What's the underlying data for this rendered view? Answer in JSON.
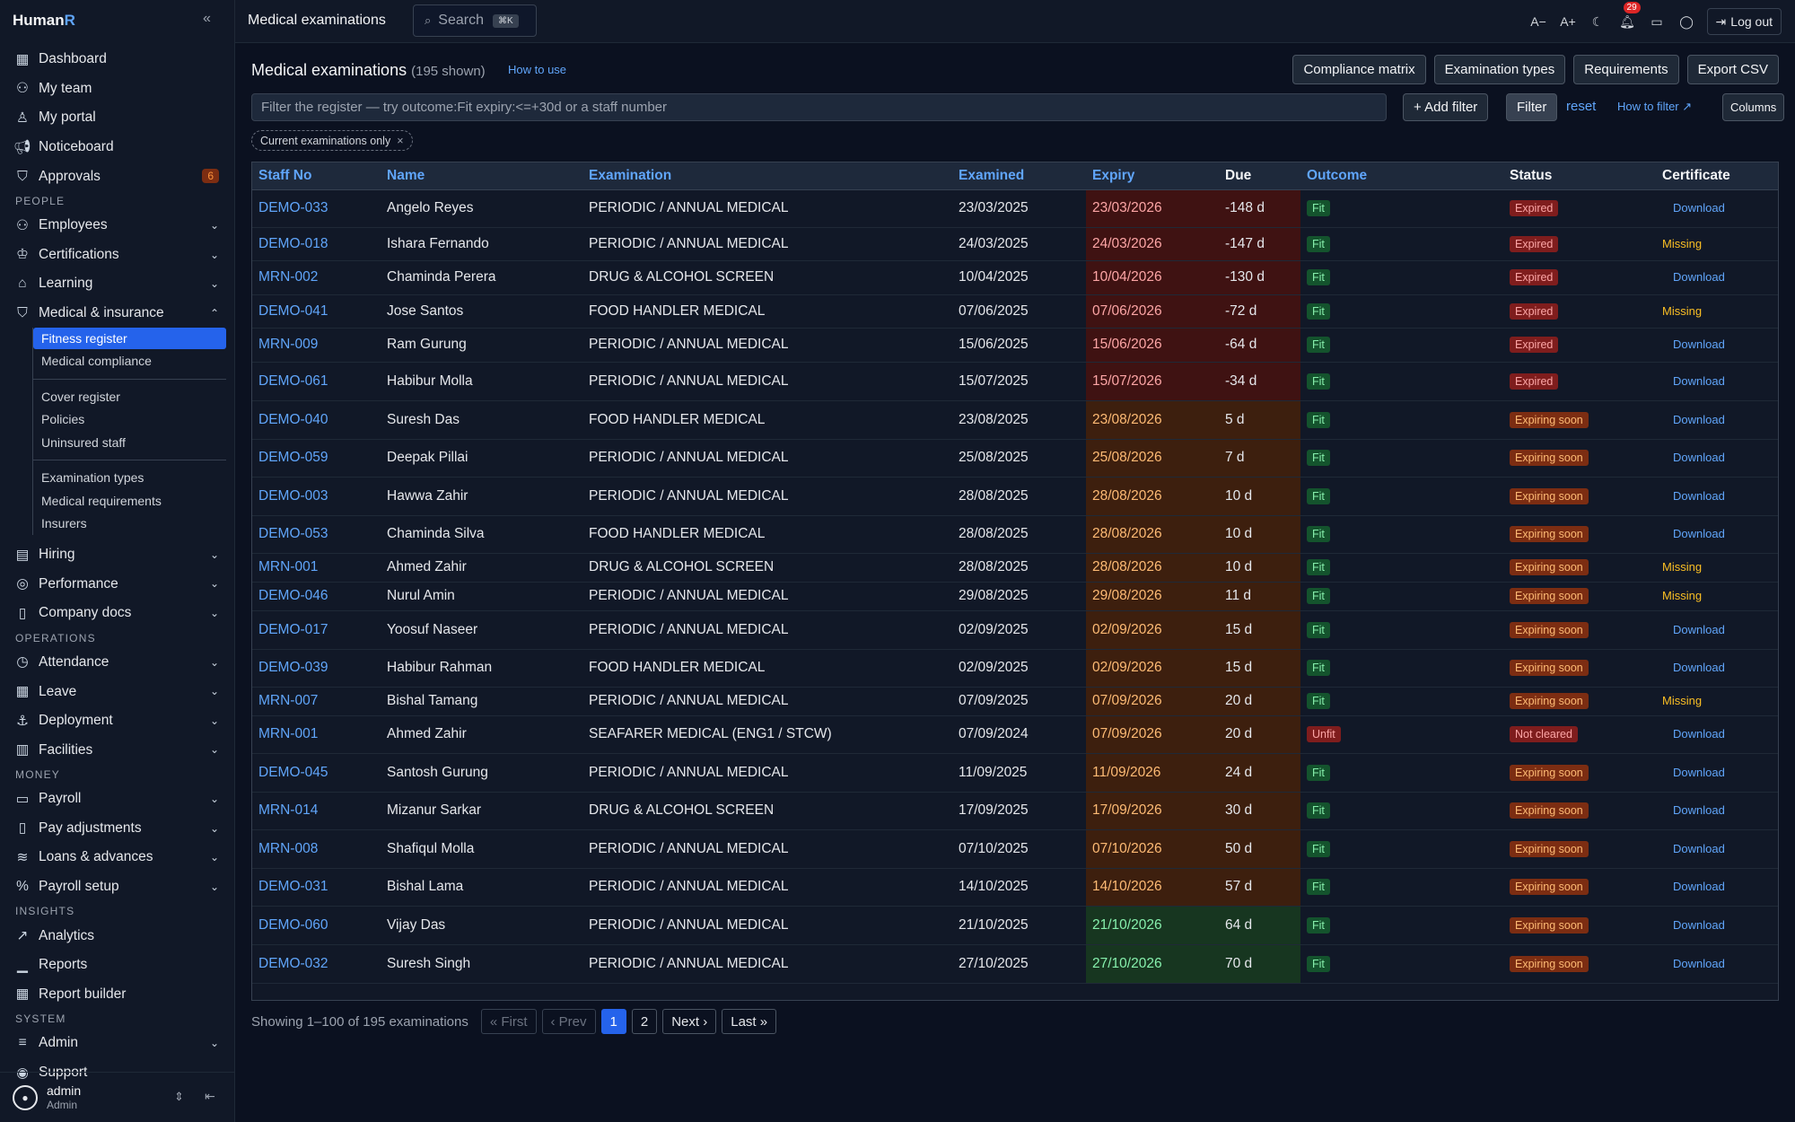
{
  "app": {
    "brand_main": "Human",
    "brand_accent": "R"
  },
  "sidebar": {
    "top": [
      {
        "label": "Dashboard",
        "icon": "grid-icon"
      },
      {
        "label": "My team",
        "icon": "team-icon"
      },
      {
        "label": "My portal",
        "icon": "user-icon"
      },
      {
        "label": "Noticeboard",
        "icon": "megaphone-icon"
      },
      {
        "label": "Approvals",
        "icon": "shield-check-icon",
        "badge": "6"
      }
    ],
    "people_heading": "PEOPLE",
    "people": [
      {
        "label": "Employees",
        "icon": "users-icon"
      },
      {
        "label": "Certifications",
        "icon": "award-icon"
      },
      {
        "label": "Learning",
        "icon": "graduation-cap-icon"
      },
      {
        "label": "Medical & insurance",
        "icon": "shield-plus-icon"
      }
    ],
    "medical_sub": [
      "Fitness register",
      "Medical compliance",
      "Cover register",
      "Policies",
      "Uninsured staff",
      "Examination types",
      "Medical requirements",
      "Insurers"
    ],
    "people2": [
      {
        "label": "Hiring",
        "icon": "briefcase-icon"
      },
      {
        "label": "Performance",
        "icon": "target-icon"
      },
      {
        "label": "Company docs",
        "icon": "book-icon"
      }
    ],
    "ops_heading": "OPERATIONS",
    "ops": [
      {
        "label": "Attendance",
        "icon": "clock-icon"
      },
      {
        "label": "Leave",
        "icon": "calendar-icon"
      },
      {
        "label": "Deployment",
        "icon": "anchor-icon"
      },
      {
        "label": "Facilities",
        "icon": "building-icon"
      }
    ],
    "money_heading": "MONEY",
    "money": [
      {
        "label": "Payroll",
        "icon": "payroll-icon"
      },
      {
        "label": "Pay adjustments",
        "icon": "receipt-icon"
      },
      {
        "label": "Loans & advances",
        "icon": "coins-icon"
      },
      {
        "label": "Payroll setup",
        "icon": "percent-icon"
      }
    ],
    "insights_heading": "INSIGHTS",
    "insights": [
      {
        "label": "Analytics",
        "icon": "trend-icon"
      },
      {
        "label": "Reports",
        "icon": "bar-chart-icon"
      },
      {
        "label": "Report builder",
        "icon": "table-icon"
      }
    ],
    "system_heading": "SYSTEM",
    "system": [
      {
        "label": "Admin",
        "icon": "sliders-icon"
      },
      {
        "label": "Support",
        "icon": "lifebuoy-icon"
      }
    ],
    "user": {
      "name": "admin",
      "role": "Admin"
    }
  },
  "topbar": {
    "title": "Medical examinations",
    "search_label": "Search",
    "search_kbd": "⌘K",
    "font_minus": "A−",
    "font_plus": "A+",
    "notif_count": "29",
    "logout": "Log out"
  },
  "page": {
    "title": "Medical examinations",
    "count": "(195 shown)",
    "how_to_use": "How to use",
    "buttons": [
      "Compliance matrix",
      "Examination types",
      "Requirements",
      "Export CSV"
    ],
    "filter_placeholder": "Filter the register — try outcome:Fit expiry:<=+30d or a staff number",
    "add_filter": "+ Add filter",
    "filter": "Filter",
    "reset": "reset",
    "how_to_filter": "How to filter ↗",
    "columns": "Columns",
    "chip": "Current examinations only"
  },
  "table": {
    "headers": [
      "Staff No",
      "Name",
      "Examination",
      "Examined",
      "Expiry",
      "Due",
      "Outcome",
      "Status",
      "Certificate"
    ],
    "rows": [
      [
        "DEMO-033",
        "Angelo Reyes",
        "PERIODIC / ANNUAL MEDICAL",
        "23/03/2025",
        "23/03/2026",
        "-148 d",
        "Fit",
        "Expired",
        "Download"
      ],
      [
        "DEMO-018",
        "Ishara Fernando",
        "PERIODIC / ANNUAL MEDICAL",
        "24/03/2025",
        "24/03/2026",
        "-147 d",
        "Fit",
        "Expired",
        "Missing"
      ],
      [
        "MRN-002",
        "Chaminda Perera",
        "DRUG & ALCOHOL SCREEN",
        "10/04/2025",
        "10/04/2026",
        "-130 d",
        "Fit",
        "Expired",
        "Download"
      ],
      [
        "DEMO-041",
        "Jose Santos",
        "FOOD HANDLER MEDICAL",
        "07/06/2025",
        "07/06/2026",
        "-72 d",
        "Fit",
        "Expired",
        "Missing"
      ],
      [
        "MRN-009",
        "Ram Gurung",
        "PERIODIC / ANNUAL MEDICAL",
        "15/06/2025",
        "15/06/2026",
        "-64 d",
        "Fit",
        "Expired",
        "Download"
      ],
      [
        "DEMO-061",
        "Habibur Molla",
        "PERIODIC / ANNUAL MEDICAL",
        "15/07/2025",
        "15/07/2026",
        "-34 d",
        "Fit",
        "Expired",
        "Download"
      ],
      [
        "DEMO-040",
        "Suresh Das",
        "FOOD HANDLER MEDICAL",
        "23/08/2025",
        "23/08/2026",
        "5 d",
        "Fit",
        "Expiring soon",
        "Download"
      ],
      [
        "DEMO-059",
        "Deepak Pillai",
        "PERIODIC / ANNUAL MEDICAL",
        "25/08/2025",
        "25/08/2026",
        "7 d",
        "Fit",
        "Expiring soon",
        "Download"
      ],
      [
        "DEMO-003",
        "Hawwa Zahir",
        "PERIODIC / ANNUAL MEDICAL",
        "28/08/2025",
        "28/08/2026",
        "10 d",
        "Fit",
        "Expiring soon",
        "Download"
      ],
      [
        "DEMO-053",
        "Chaminda Silva",
        "FOOD HANDLER MEDICAL",
        "28/08/2025",
        "28/08/2026",
        "10 d",
        "Fit",
        "Expiring soon",
        "Download"
      ],
      [
        "MRN-001",
        "Ahmed Zahir",
        "DRUG & ALCOHOL SCREEN",
        "28/08/2025",
        "28/08/2026",
        "10 d",
        "Fit",
        "Expiring soon",
        "Missing"
      ],
      [
        "DEMO-046",
        "Nurul Amin",
        "PERIODIC / ANNUAL MEDICAL",
        "29/08/2025",
        "29/08/2026",
        "11 d",
        "Fit",
        "Expiring soon",
        "Missing"
      ],
      [
        "DEMO-017",
        "Yoosuf Naseer",
        "PERIODIC / ANNUAL MEDICAL",
        "02/09/2025",
        "02/09/2026",
        "15 d",
        "Fit",
        "Expiring soon",
        "Download"
      ],
      [
        "DEMO-039",
        "Habibur Rahman",
        "FOOD HANDLER MEDICAL",
        "02/09/2025",
        "02/09/2026",
        "15 d",
        "Fit",
        "Expiring soon",
        "Download"
      ],
      [
        "MRN-007",
        "Bishal Tamang",
        "PERIODIC / ANNUAL MEDICAL",
        "07/09/2025",
        "07/09/2026",
        "20 d",
        "Fit",
        "Expiring soon",
        "Missing"
      ],
      [
        "MRN-001",
        "Ahmed Zahir",
        "SEAFARER MEDICAL (ENG1 / STCW)",
        "07/09/2024",
        "07/09/2026",
        "20 d",
        "Unfit",
        "Not cleared",
        "Download"
      ],
      [
        "DEMO-045",
        "Santosh Gurung",
        "PERIODIC / ANNUAL MEDICAL",
        "11/09/2025",
        "11/09/2026",
        "24 d",
        "Fit",
        "Expiring soon",
        "Download"
      ],
      [
        "MRN-014",
        "Mizanur Sarkar",
        "DRUG & ALCOHOL SCREEN",
        "17/09/2025",
        "17/09/2026",
        "30 d",
        "Fit",
        "Expiring soon",
        "Download"
      ],
      [
        "MRN-008",
        "Shafiqul Molla",
        "PERIODIC / ANNUAL MEDICAL",
        "07/10/2025",
        "07/10/2026",
        "50 d",
        "Fit",
        "Expiring soon",
        "Download"
      ],
      [
        "DEMO-031",
        "Bishal Lama",
        "PERIODIC / ANNUAL MEDICAL",
        "14/10/2025",
        "14/10/2026",
        "57 d",
        "Fit",
        "Expiring soon",
        "Download"
      ],
      [
        "DEMO-060",
        "Vijay Das",
        "PERIODIC / ANNUAL MEDICAL",
        "21/10/2025",
        "21/10/2026",
        "64 d",
        "Fit",
        "Expiring soon",
        "Download"
      ],
      [
        "DEMO-032",
        "Suresh Singh",
        "PERIODIC / ANNUAL MEDICAL",
        "27/10/2025",
        "27/10/2026",
        "70 d",
        "Fit",
        "Expiring soon",
        "Download"
      ]
    ]
  },
  "pager": {
    "summary": "Showing 1–100 of 195 examinations",
    "first": "« First",
    "prev": "‹ Prev",
    "pages": [
      "1",
      "2"
    ],
    "next": "Next ›",
    "last": "Last »"
  },
  "colors": {
    "accent": "#2563eb",
    "link": "#60a5fa",
    "expired_bg": "#4a1414",
    "soon_bg": "#4a2410",
    "ok_bg": "#163a1e"
  }
}
